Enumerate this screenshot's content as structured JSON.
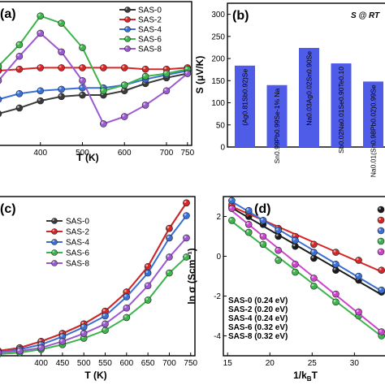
{
  "chart_data": [
    {
      "panel": "(a)",
      "type": "line",
      "xlabel": "T (K)",
      "ylabel": "",
      "xlim": [
        300,
        760
      ],
      "ylim": [
        0,
        100
      ],
      "x_ticks": [
        "500",
        "600",
        "700",
        "750"
      ],
      "x_tick_values": [
        500,
        600,
        700,
        750
      ],
      "x_ticks_extra": [
        "400"
      ],
      "x_ticks_extra_values": [
        400
      ],
      "legend_position": "top-right",
      "grid": false,
      "x": [
        300,
        350,
        400,
        450,
        500,
        550,
        600,
        650,
        700,
        750
      ],
      "series": [
        {
          "name": "SAS-0",
          "color": "#3a3a3a",
          "values": [
            22,
            26,
            31,
            34,
            35,
            35,
            38,
            43,
            47,
            50
          ]
        },
        {
          "name": "SAS-2",
          "color": "#d62728",
          "values": [
            52,
            53,
            54,
            54,
            54,
            54,
            54,
            53,
            53,
            54
          ]
        },
        {
          "name": "SAS-4",
          "color": "#3b6fd4",
          "values": [
            32,
            36,
            38,
            39,
            40,
            40,
            42,
            46,
            49,
            52
          ]
        },
        {
          "name": "SAS-6",
          "color": "#3cb44b",
          "values": [
            55,
            70,
            90,
            85,
            68,
            38,
            42,
            48,
            50,
            53
          ]
        },
        {
          "name": "SAS-8",
          "color": "#9b59d0",
          "values": [
            45,
            62,
            78,
            65,
            45,
            15,
            20,
            28,
            38,
            50
          ]
        }
      ]
    },
    {
      "panel": "(b)",
      "type": "bar",
      "annotation": "S @ RT",
      "ylabel": "S (μV/K)",
      "ylim": [
        0,
        325
      ],
      "y_ticks": [
        "0",
        "50",
        "100",
        "150",
        "200",
        "250",
        "300"
      ],
      "y_tick_values": [
        0,
        50,
        100,
        150,
        200,
        250,
        300
      ],
      "bar_color": "#4f5ce8",
      "categories": [
        "(Ag0.81Sb0.92)Se",
        "Sn0.99Pb0.99Se-1% Na",
        "Na0.03Ag0.02Sn0.90Se",
        "Sb0.02Na0.01Se0.90Te0.10",
        "Na0.01(Sn0.98Pb0.02)0.99Se"
      ],
      "values": [
        184,
        140,
        224,
        189,
        148
      ]
    },
    {
      "panel": "(c)",
      "type": "line",
      "xlabel": "T (K)",
      "ylabel": "",
      "xlim": [
        300,
        760
      ],
      "ylim": [
        0,
        100
      ],
      "x_ticks": [
        "400",
        "450",
        "500",
        "550",
        "600",
        "650",
        "700",
        "750"
      ],
      "x_tick_values": [
        400,
        450,
        500,
        550,
        600,
        650,
        700,
        750
      ],
      "legend_position": "top-left",
      "grid": false,
      "x": [
        300,
        350,
        400,
        450,
        500,
        550,
        600,
        650,
        700,
        740
      ],
      "series": [
        {
          "name": "SAS-0",
          "color": "#3a3a3a",
          "values": [
            3,
            5,
            9,
            14,
            20,
            28,
            40,
            56,
            80,
            96
          ]
        },
        {
          "name": "SAS-2",
          "color": "#d62728",
          "values": [
            3,
            5,
            9,
            14,
            20,
            28,
            40,
            56,
            80,
            96
          ]
        },
        {
          "name": "SAS-4",
          "color": "#3b6fd4",
          "values": [
            2,
            4,
            7,
            12,
            18,
            25,
            37,
            52,
            74,
            88
          ]
        },
        {
          "name": "SAS-6",
          "color": "#3cb44b",
          "values": [
            1,
            2,
            4,
            7,
            11,
            16,
            24,
            35,
            52,
            62
          ]
        },
        {
          "name": "SAS-8",
          "color": "#9b59d0",
          "values": [
            2,
            3,
            5,
            9,
            14,
            20,
            30,
            44,
            62,
            74
          ]
        }
      ]
    },
    {
      "panel": "(d)",
      "type": "scatter",
      "xlabel": "1/kʙT",
      "xlabel_main": "1/k",
      "xlabel_sub": "B",
      "xlabel_tail": "T",
      "ylabel": "ln σ (Scm⁻¹)",
      "xlim": [
        14.5,
        34
      ],
      "ylim": [
        -5,
        3
      ],
      "x_ticks": [
        "15",
        "20",
        "25",
        "30"
      ],
      "x_tick_values": [
        15,
        20,
        25,
        30
      ],
      "y_ticks": [
        "-4",
        "-2",
        "0",
        "2"
      ],
      "y_tick_values": [
        -4,
        -2,
        0,
        2
      ],
      "legend_position": "bottom-left",
      "grid": false,
      "series": [
        {
          "name": "SAS-0",
          "label": "SAS-0 (0.24 eV)",
          "color": "#1a1a1a",
          "x": [
            15.5,
            17.5,
            19.2,
            21.0,
            23.0,
            25.2,
            27.8,
            30.5,
            33.2
          ],
          "y": [
            2.5,
            2.0,
            1.6,
            1.0,
            0.5,
            -0.1,
            -0.7,
            -1.2,
            -1.8
          ]
        },
        {
          "name": "SAS-2",
          "label": "SAS-2 (0.20 eV)",
          "color": "#d62728",
          "x": [
            15.5,
            17.5,
            19.2,
            21.0,
            23.0,
            25.2,
            27.8,
            30.5,
            33.2
          ],
          "y": [
            2.6,
            2.2,
            1.8,
            1.4,
            1.0,
            0.6,
            0.2,
            -0.2,
            -0.7
          ]
        },
        {
          "name": "SAS-4",
          "label": "SAS-4 (0.24 eV)",
          "color": "#3b6fd4",
          "x": [
            15.5,
            17.5,
            19.2,
            21.0,
            23.0,
            25.2,
            27.8,
            30.5,
            33.2
          ],
          "y": [
            2.8,
            2.3,
            1.8,
            1.3,
            0.8,
            0.2,
            -0.4,
            -1.0,
            -1.7
          ]
        },
        {
          "name": "SAS-6",
          "label": "SAS-6 (0.32 eV)",
          "color": "#3cb44b",
          "x": [
            15.5,
            17.5,
            19.2,
            21.0,
            23.0,
            25.2,
            27.8,
            30.5,
            33.2
          ],
          "y": [
            1.8,
            1.2,
            0.6,
            -0.2,
            -0.8,
            -1.5,
            -2.3,
            -3.0,
            -4.0
          ]
        },
        {
          "name": "SAS-8",
          "label": "SAS-8 (0.32 eV)",
          "color": "#cc44cc",
          "x": [
            15.5,
            17.5,
            19.2,
            21.0,
            23.0,
            25.2,
            27.8,
            30.5,
            33.2
          ],
          "y": [
            2.4,
            1.6,
            1.0,
            0.3,
            -0.4,
            -1.1,
            -1.9,
            -2.8,
            -3.8
          ]
        }
      ]
    }
  ]
}
